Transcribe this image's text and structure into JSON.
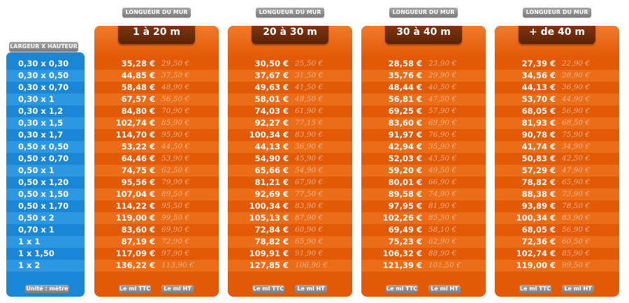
{
  "left": {
    "tag": "LARGEUR X HAUTEUR",
    "unit": "Unité : mètre",
    "dimensions": [
      "0,30 x 0,30",
      "0,30 x 0,50",
      "0,30 x 0,70",
      "0,30 x 1",
      "0,30 x 1,2",
      "0,30 x 1,5",
      "0,30 x 1,7",
      "0,50 x 0,50",
      "0,50 x 0,70",
      "0,50 x 1",
      "0,50 x 1,20",
      "0,50 x 1,50",
      "0,50 x 1,70",
      "0,50 x 2",
      "0,70 x 1",
      "1 x 1",
      "1 x 1,50",
      "1 x 2"
    ]
  },
  "columns": [
    {
      "tag": "LONGUEUR DU MUR",
      "title": "1 à 20 m",
      "ttc_label": "Le ml TTC",
      "ht_label": "Le ml HT",
      "ttc": [
        "35,28 €",
        "44,85 €",
        "58,48 €",
        "67,57 €",
        "84,80 €",
        "102,74 €",
        "114,70 €",
        "53,22 €",
        "64,46 €",
        "74,75 €",
        "95,56 €",
        "107,04 €",
        "114,22 €",
        "119,00 €",
        "83,60 €",
        "87,19 €",
        "117,09 €",
        "136,22 €"
      ],
      "ht": [
        "29,50 €",
        "37,50 €",
        "48,90 €",
        "56,50 €",
        "70,90 €",
        "85,90 €",
        "95,90 €",
        "44,50 €",
        "53,90 €",
        "62,50 €",
        "79,90 €",
        "89,50 €",
        "95,50 €",
        "99,50 €",
        "69,90 €",
        "72,90 €",
        "97,90 €",
        "113,90 €"
      ]
    },
    {
      "tag": "LONGUEUR DU MUR",
      "title": "20 à 30 m",
      "ttc_label": "Le ml TTC",
      "ht_label": "Le ml HT",
      "ttc": [
        "30,50 €",
        "37,67 €",
        "49,63 €",
        "58,01 €",
        "74,03 €",
        "92,27 €",
        "100,34 €",
        "44,13 €",
        "54,90 €",
        "65,66 €",
        "81,21 €",
        "92,69 €",
        "100,34 €",
        "105,13 €",
        "72,84 €",
        "78,82 €",
        "109,91 €",
        "127,85 €"
      ],
      "ht": [
        "25,50 €",
        "31,50 €",
        "41,50 €",
        "48,50 €",
        "61,90 €",
        "77,15 €",
        "83,90 €",
        "36,90 €",
        "45,90 €",
        "54,90 €",
        "67,90 €",
        "77,50 €",
        "83,90 €",
        "87,90 €",
        "60,90 €",
        "65,90 €",
        "91,90 €",
        "106,90 €"
      ]
    },
    {
      "tag": "LONGUEUR DU MUR",
      "title": "30 à 40 m",
      "ttc_label": "Le ml TTC",
      "ht_label": "Le ml HT",
      "ttc": [
        "28,58 €",
        "35,76 €",
        "48,44 €",
        "56,81 €",
        "69,25 €",
        "83,60 €",
        "91,97 €",
        "42,94 €",
        "52,03 €",
        "59,20 €",
        "80,01 €",
        "89,58 €",
        "97,95 €",
        "102,26 €",
        "69,49 €",
        "75,23 €",
        "106,32 €",
        "121,39 €"
      ],
      "ht": [
        "23,90 €",
        "29,90 €",
        "40,50 €",
        "47,50 €",
        "57,90 €",
        "69,90 €",
        "76,90 €",
        "35,90 €",
        "43,50 €",
        "49,50 €",
        "66,90 €",
        "74,90 €",
        "81,90 €",
        "85,50 €",
        "58,10 €",
        "62,90 €",
        "88,90 €",
        "101,50 €"
      ]
    },
    {
      "tag": "LONGUEUR DU MUR",
      "title": "+ de 40 m",
      "ttc_label": "Le ml TTC",
      "ht_label": "Le ml HT",
      "ttc": [
        "27,39 €",
        "34,56 €",
        "44,13 €",
        "53,70 €",
        "68,05 €",
        "81,93 €",
        "90,78 €",
        "41,74 €",
        "50,83 €",
        "57,29 €",
        "78,82 €",
        "88,38 €",
        "93,89 €",
        "100,34 €",
        "68,05 €",
        "72,36 €",
        "102,74 €",
        "119,00 €"
      ],
      "ht": [
        "22,90 €",
        "28,90 €",
        "36,90 €",
        "44,90 €",
        "56,90 €",
        "68,50 €",
        "75,90 €",
        "34,90 €",
        "42,50 €",
        "47,90 €",
        "65,90 €",
        "73,90 €",
        "78,50 €",
        "83,90 €",
        "56,90 €",
        "60,50 €",
        "85,90 €",
        "99,50 €"
      ]
    }
  ],
  "colors": {
    "blue": "#1a86d6",
    "orange": "#e35a06",
    "header": "#6e2c0a"
  }
}
